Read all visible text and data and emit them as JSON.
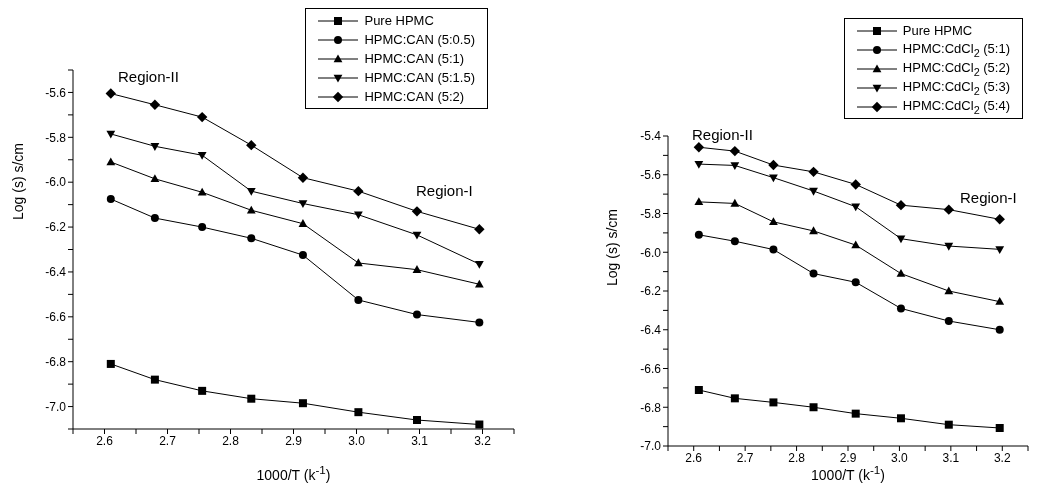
{
  "chart_data": [
    {
      "type": "line",
      "xlabel": "1000/T (k$^{-1}$)",
      "ylabel": "Log (s) s/cm",
      "legend": "top right",
      "annotations": [
        "Region-II",
        "Region-I"
      ],
      "x": [
        2.61,
        2.68,
        2.755,
        2.833,
        2.915,
        3.003,
        3.096,
        3.195
      ],
      "xlim": [
        2.55,
        3.25
      ],
      "xticks": [
        {
          "value": 2.55,
          "label": null
        },
        {
          "value": 2.6,
          "label": "2.6"
        },
        {
          "value": 2.65,
          "label": null
        },
        {
          "value": 2.7,
          "label": "2.7"
        },
        {
          "value": 2.75,
          "label": null
        },
        {
          "value": 2.8,
          "label": "2.8"
        },
        {
          "value": 2.85,
          "label": null
        },
        {
          "value": 2.9,
          "label": "2.9"
        },
        {
          "value": 2.95,
          "label": null
        },
        {
          "value": 3.0,
          "label": "3.0"
        },
        {
          "value": 3.05,
          "label": null
        },
        {
          "value": 3.1,
          "label": "3.1"
        },
        {
          "value": 3.15,
          "label": null
        },
        {
          "value": 3.2,
          "label": "3.2"
        },
        {
          "value": 3.25,
          "label": null
        }
      ],
      "ylim": [
        -7.1,
        -5.5
      ],
      "yticks": [
        {
          "value": -7.1,
          "label": null
        },
        {
          "value": -7.0,
          "label": "-7.0"
        },
        {
          "value": -6.9,
          "label": null
        },
        {
          "value": -6.8,
          "label": "-6.8"
        },
        {
          "value": -6.7,
          "label": null
        },
        {
          "value": -6.6,
          "label": "-6.6"
        },
        {
          "value": -6.5,
          "label": null
        },
        {
          "value": -6.4,
          "label": "-6.4"
        },
        {
          "value": -6.3,
          "label": null
        },
        {
          "value": -6.2,
          "label": "-6.2"
        },
        {
          "value": -6.1,
          "label": null
        },
        {
          "value": -6.0,
          "label": "-6.0"
        },
        {
          "value": -5.9,
          "label": null
        },
        {
          "value": -5.8,
          "label": "-5.8"
        },
        {
          "value": -5.7,
          "label": null
        },
        {
          "value": -5.6,
          "label": "-5.6"
        },
        {
          "value": -5.5,
          "label": null
        }
      ],
      "series": [
        {
          "name": "Pure HPMC",
          "color": "#000000",
          "marker": "square",
          "values": [
            -6.81,
            -6.88,
            -6.93,
            -6.965,
            -6.985,
            -7.025,
            -7.06,
            -7.08
          ]
        },
        {
          "name": "HPMC:CAN (5:0.5)",
          "color": "#000000",
          "marker": "circle",
          "values": [
            -6.075,
            -6.16,
            -6.2,
            -6.25,
            -6.325,
            -6.525,
            -6.59,
            -6.625
          ]
        },
        {
          "name": "HPMC:CAN (5:1)",
          "color": "#000000",
          "marker": "triangle",
          "values": [
            -5.91,
            -5.985,
            -6.045,
            -6.125,
            -6.185,
            -6.36,
            -6.39,
            -6.455
          ]
        },
        {
          "name": "HPMC:CAN (5:1.5)",
          "color": "#000000",
          "marker": "triangle-down",
          "values": [
            -5.785,
            -5.84,
            -5.88,
            -6.04,
            -6.095,
            -6.145,
            -6.235,
            -6.365
          ]
        },
        {
          "name": "HPMC:CAN (5:2)",
          "color": "#000000",
          "marker": "diamond",
          "values": [
            -5.605,
            -5.655,
            -5.71,
            -5.835,
            -5.98,
            -6.04,
            -6.13,
            -6.21
          ]
        }
      ]
    },
    {
      "type": "line",
      "xlabel": "1000/T (k$^{-1}$)",
      "ylabel": "Log (s) s/cm",
      "legend": "top right",
      "annotations": [
        "Region-II",
        "Region-I"
      ],
      "x": [
        2.61,
        2.68,
        2.755,
        2.833,
        2.915,
        3.003,
        3.096,
        3.195
      ],
      "xlim": [
        2.55,
        3.25
      ],
      "xticks": [
        {
          "value": 2.55,
          "label": null
        },
        {
          "value": 2.6,
          "label": "2.6"
        },
        {
          "value": 2.65,
          "label": null
        },
        {
          "value": 2.7,
          "label": "2.7"
        },
        {
          "value": 2.75,
          "label": null
        },
        {
          "value": 2.8,
          "label": "2.8"
        },
        {
          "value": 2.85,
          "label": null
        },
        {
          "value": 2.9,
          "label": "2.9"
        },
        {
          "value": 2.95,
          "label": null
        },
        {
          "value": 3.0,
          "label": "3.0"
        },
        {
          "value": 3.05,
          "label": null
        },
        {
          "value": 3.1,
          "label": "3.1"
        },
        {
          "value": 3.15,
          "label": null
        },
        {
          "value": 3.2,
          "label": "3.2"
        },
        {
          "value": 3.25,
          "label": null
        }
      ],
      "ylim": [
        -7.0,
        -5.4
      ],
      "yticks": [
        {
          "value": -7.0,
          "label": "-7.0"
        },
        {
          "value": -6.9,
          "label": null
        },
        {
          "value": -6.8,
          "label": "-6.8"
        },
        {
          "value": -6.7,
          "label": null
        },
        {
          "value": -6.6,
          "label": "-6.6"
        },
        {
          "value": -6.5,
          "label": null
        },
        {
          "value": -6.4,
          "label": "-6.4"
        },
        {
          "value": -6.3,
          "label": null
        },
        {
          "value": -6.2,
          "label": "-6.2"
        },
        {
          "value": -6.1,
          "label": null
        },
        {
          "value": -6.0,
          "label": "-6.0"
        },
        {
          "value": -5.9,
          "label": null
        },
        {
          "value": -5.8,
          "label": "-5.8"
        },
        {
          "value": -5.7,
          "label": null
        },
        {
          "value": -5.6,
          "label": "-5.6"
        },
        {
          "value": -5.5,
          "label": null
        },
        {
          "value": -5.4,
          "label": "-5.4"
        }
      ],
      "series": [
        {
          "name": "Pure HPMC",
          "color": "#000000",
          "marker": "square",
          "values": [
            -6.711,
            -6.754,
            -6.775,
            -6.8,
            -6.833,
            -6.857,
            -6.89,
            -6.907
          ]
        },
        {
          "name": "HPMC:CdCl$_{2}$ (5:1)",
          "color": "#000000",
          "marker": "circle",
          "values": [
            -5.91,
            -5.943,
            -5.986,
            -6.11,
            -6.155,
            -6.29,
            -6.355,
            -6.4
          ]
        },
        {
          "name": "HPMC:CdCl$_{2}$ (5:2)",
          "color": "#000000",
          "marker": "triangle",
          "values": [
            -5.74,
            -5.748,
            -5.843,
            -5.89,
            -5.963,
            -6.11,
            -6.2,
            -6.255
          ]
        },
        {
          "name": "HPMC:CdCl$_{2}$ (5:3)",
          "color": "#000000",
          "marker": "triangle-down",
          "values": [
            -5.545,
            -5.552,
            -5.615,
            -5.684,
            -5.765,
            -5.93,
            -5.968,
            -5.985
          ]
        },
        {
          "name": "HPMC:CdCl$_{2}$ (5:4)",
          "color": "#000000",
          "marker": "diamond",
          "values": [
            -5.458,
            -5.478,
            -5.55,
            -5.585,
            -5.65,
            -5.757,
            -5.78,
            -5.83
          ]
        }
      ]
    }
  ]
}
